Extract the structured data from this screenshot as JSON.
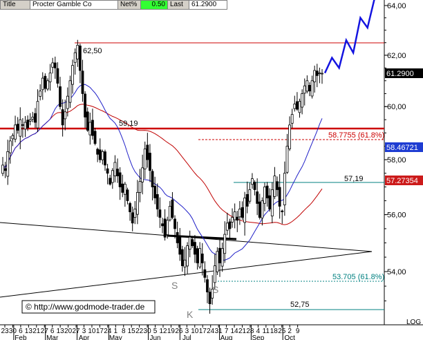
{
  "header": {
    "title_label": "Title",
    "instrument": "Procter   Gamble Co",
    "net_label": "Net%",
    "net_value": "0.50",
    "last_label": "Last",
    "last_value": "61.2900"
  },
  "watermark": "© http://www.godmode-trader.de",
  "scale_label": "LOG",
  "colors": {
    "up_candle": "#ffffff",
    "down_candle": "#000000",
    "ma_short": "#2020c8",
    "ma_long": "#c00000",
    "support_line": "#cc0000",
    "fib_line": "#cc0000",
    "forecast": "#1414e0",
    "teal_line": "#008080",
    "last_badge": "#000000",
    "ma_short_badge": "#1e3cd2",
    "ma_long_badge": "#cc1a1a"
  },
  "chart_data": {
    "type": "candlestick",
    "title": "",
    "scale": "log",
    "ylim": [
      51.5,
      64.2
    ],
    "y_ticks": [
      54.0,
      56.0,
      58.0,
      60.0,
      62.0,
      64.0
    ],
    "y_tick_labels": [
      "54,00",
      "56,00",
      "58,00",
      "60,00",
      "62,00",
      "64,00"
    ],
    "x_day_labels": [
      "23",
      "30",
      "6",
      "13",
      "21",
      "27",
      "6",
      "13",
      "20",
      "27",
      "3",
      "10",
      "17",
      "24",
      "1",
      "8",
      "15",
      "22",
      "30",
      "5",
      "12",
      "19",
      "26",
      "3",
      "10",
      "17",
      "24",
      "31",
      "7",
      "14",
      "21",
      "28",
      "4",
      "11",
      "18",
      "25",
      "2",
      "9"
    ],
    "x_month_labels": [
      "Feb",
      "Mar",
      "Apr",
      "May",
      "Jun",
      "Jul",
      "Aug",
      "Sep",
      "Oct"
    ],
    "price_labels": {
      "resistance_high": "62,50",
      "support_5919": "59,19",
      "fib_upper": "58.7755 (61.8%)",
      "level_5719": "57,19",
      "fib_lower": "53.705 (61.8%)",
      "low_5275": "52,75"
    },
    "pattern_labels": {
      "shoulder_left": "S",
      "head": "K",
      "shoulder_right": "S"
    },
    "badges": {
      "last": "61.2900",
      "ma_short": "58.46721",
      "ma_long": "57.27354"
    },
    "levels": [
      62.5,
      59.19,
      58.7755,
      57.19,
      53.705,
      52.75
    ],
    "close_path": [
      57.8,
      57.6,
      58.3,
      58.7,
      58.9,
      59.3,
      59.1,
      59.5,
      59.3,
      59.4,
      59.2,
      59.5,
      59.6,
      59.4,
      60.2,
      60.6,
      61.1,
      60.7,
      61.0,
      61.3,
      61.7,
      61.5,
      60.9,
      60.0,
      59.3,
      59.8,
      60.4,
      61.0,
      61.6,
      62.1,
      62.4,
      61.4,
      60.5,
      59.6,
      59.1,
      59.4,
      58.9,
      58.6,
      58.2,
      58.0,
      58.3,
      57.8,
      57.5,
      57.1,
      57.6,
      57.9,
      57.4,
      57.0,
      56.8,
      57.1,
      56.5,
      56.1,
      55.7,
      56.2,
      56.8,
      57.2,
      57.7,
      58.4,
      58.0,
      57.6,
      57.0,
      56.6,
      56.2,
      55.9,
      55.6,
      55.2,
      55.8,
      56.3,
      55.9,
      55.5,
      55.0,
      54.6,
      54.2,
      54.4,
      54.9,
      55.2,
      54.9,
      54.6,
      54.3,
      54.8,
      54.3,
      53.8,
      53.3,
      52.9,
      53.4,
      54.2,
      54.7,
      54.3,
      54.8,
      55.3,
      55.7,
      55.5,
      55.9,
      56.1,
      55.8,
      56.2,
      55.9,
      56.6,
      56.3,
      56.9,
      57.3,
      56.9,
      56.4,
      55.9,
      56.5,
      57.0,
      56.6,
      56.2,
      56.9,
      57.4,
      56.9,
      56.3,
      56.1,
      57.5,
      58.5,
      59.3,
      59.7,
      60.1,
      59.9,
      60.2,
      60.5,
      60.8,
      61.0,
      60.6,
      61.0,
      61.4,
      61.2,
      61.3,
      61.29
    ],
    "forecast_path": [
      61.3,
      61.9,
      61.5,
      62.6,
      62.1,
      63.5,
      63.1,
      64.3
    ]
  }
}
